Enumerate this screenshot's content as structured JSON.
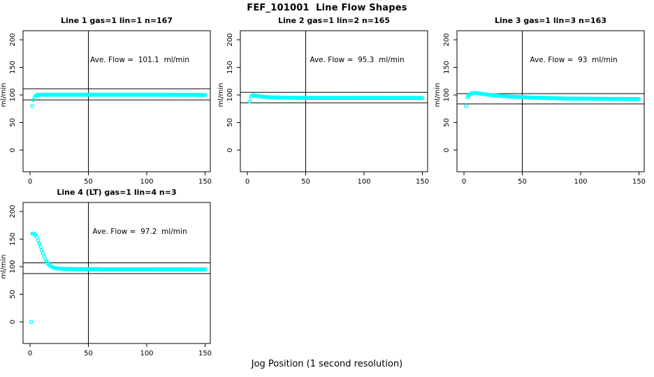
{
  "title": "FEF_101001  Line Flow Shapes",
  "xlabel": "Jog Position (1 second resolution)",
  "colors": {
    "points": "#00FFFF",
    "axis": "#000000",
    "background": "#FFFFFF"
  },
  "chart_data": {
    "type": "scatter",
    "title": "FEF_101001  Line Flow Shapes",
    "xlabel": "Jog Position (1 second resolution)",
    "ylabel": "ml/min",
    "layout_hint": {
      "rows": 2,
      "cols": 3,
      "panel_positions": [
        [
          0,
          0
        ],
        [
          0,
          1
        ],
        [
          0,
          2
        ],
        [
          1,
          0
        ]
      ],
      "legend": "none",
      "grid": "off"
    },
    "x_range": [
      0,
      150
    ],
    "y_range": [
      0,
      200
    ],
    "panels": [
      {
        "title": "Line 1 gas=1 lin=1 n=167",
        "n": 167,
        "ave_flow": 101.1,
        "ave_flow_label": "Ave. Flow =  101.1  ml/min",
        "ylabel": "ml/min",
        "xticks": [
          0,
          50,
          100,
          150
        ],
        "yticks": [
          0,
          50,
          100,
          150,
          200
        ],
        "hlines": [
          111.2,
          91.0
        ],
        "vline": 50,
        "points_anchor_xy": [
          [
            2,
            80
          ],
          [
            3,
            91
          ],
          [
            4,
            96
          ],
          [
            5,
            99
          ],
          [
            6,
            100
          ],
          [
            10,
            100.5
          ],
          [
            20,
            100.5
          ],
          [
            50,
            100.5
          ],
          [
            100,
            100.5
          ],
          [
            150,
            100
          ]
        ]
      },
      {
        "title": "Line 2 gas=1 lin=2 n=165",
        "n": 165,
        "ave_flow": 95.3,
        "ave_flow_label": "Ave. Flow =  95.3  ml/min",
        "ylabel": "ml/min",
        "xticks": [
          0,
          50,
          100,
          150
        ],
        "yticks": [
          0,
          50,
          100,
          150,
          200
        ],
        "hlines": [
          104.8,
          85.8
        ],
        "vline": 50,
        "points_anchor_xy": [
          [
            2,
            88
          ],
          [
            3,
            96
          ],
          [
            4,
            99
          ],
          [
            6,
            99.5
          ],
          [
            8,
            98.5
          ],
          [
            12,
            97
          ],
          [
            18,
            96
          ],
          [
            25,
            95.3
          ],
          [
            40,
            94.8
          ],
          [
            80,
            94.5
          ],
          [
            150,
            94.5
          ]
        ]
      },
      {
        "title": "Line 3 gas=1 lin=3 n=163",
        "n": 163,
        "ave_flow": 93,
        "ave_flow_label": "Ave. Flow =  93  ml/min",
        "ylabel": "ml/min",
        "xticks": [
          0,
          50,
          100,
          150
        ],
        "yticks": [
          0,
          50,
          100,
          150,
          200
        ],
        "hlines": [
          102.3,
          83.7
        ],
        "vline": 50,
        "points_anchor_xy": [
          [
            2,
            80
          ],
          [
            3,
            96
          ],
          [
            5,
            101
          ],
          [
            7,
            103
          ],
          [
            10,
            103.5
          ],
          [
            15,
            102
          ],
          [
            25,
            99.5
          ],
          [
            40,
            97
          ],
          [
            60,
            95
          ],
          [
            90,
            93.5
          ],
          [
            120,
            93
          ],
          [
            150,
            92.5
          ]
        ]
      },
      {
        "title": "Line 4 (LT) gas=1 lin=4 n=3",
        "n": 3,
        "ave_flow": 97.2,
        "ave_flow_label": "Ave. Flow =  97.2  ml/min",
        "ylabel": "ml/min",
        "xticks": [
          0,
          50,
          100,
          150
        ],
        "yticks": [
          0,
          50,
          100,
          150,
          200
        ],
        "hlines": [
          106.9,
          87.5
        ],
        "vline": 50,
        "points_anchor_xy": [
          [
            1,
            0
          ],
          [
            2,
            160
          ],
          [
            3,
            160
          ],
          [
            4,
            159
          ],
          [
            5,
            157
          ],
          [
            6,
            153
          ],
          [
            7,
            148
          ],
          [
            8,
            142
          ],
          [
            9,
            136
          ],
          [
            10,
            130
          ],
          [
            11,
            124
          ],
          [
            12,
            119
          ],
          [
            13,
            114
          ],
          [
            14,
            110
          ],
          [
            15,
            106.5
          ],
          [
            16,
            104
          ],
          [
            17,
            102
          ],
          [
            18,
            100.5
          ],
          [
            19,
            99.3
          ],
          [
            20,
            98.4
          ],
          [
            22,
            97.3
          ],
          [
            25,
            96.5
          ],
          [
            30,
            96
          ],
          [
            40,
            95.7
          ],
          [
            60,
            95.5
          ],
          [
            100,
            95.4
          ],
          [
            150,
            95.2
          ]
        ]
      }
    ]
  }
}
